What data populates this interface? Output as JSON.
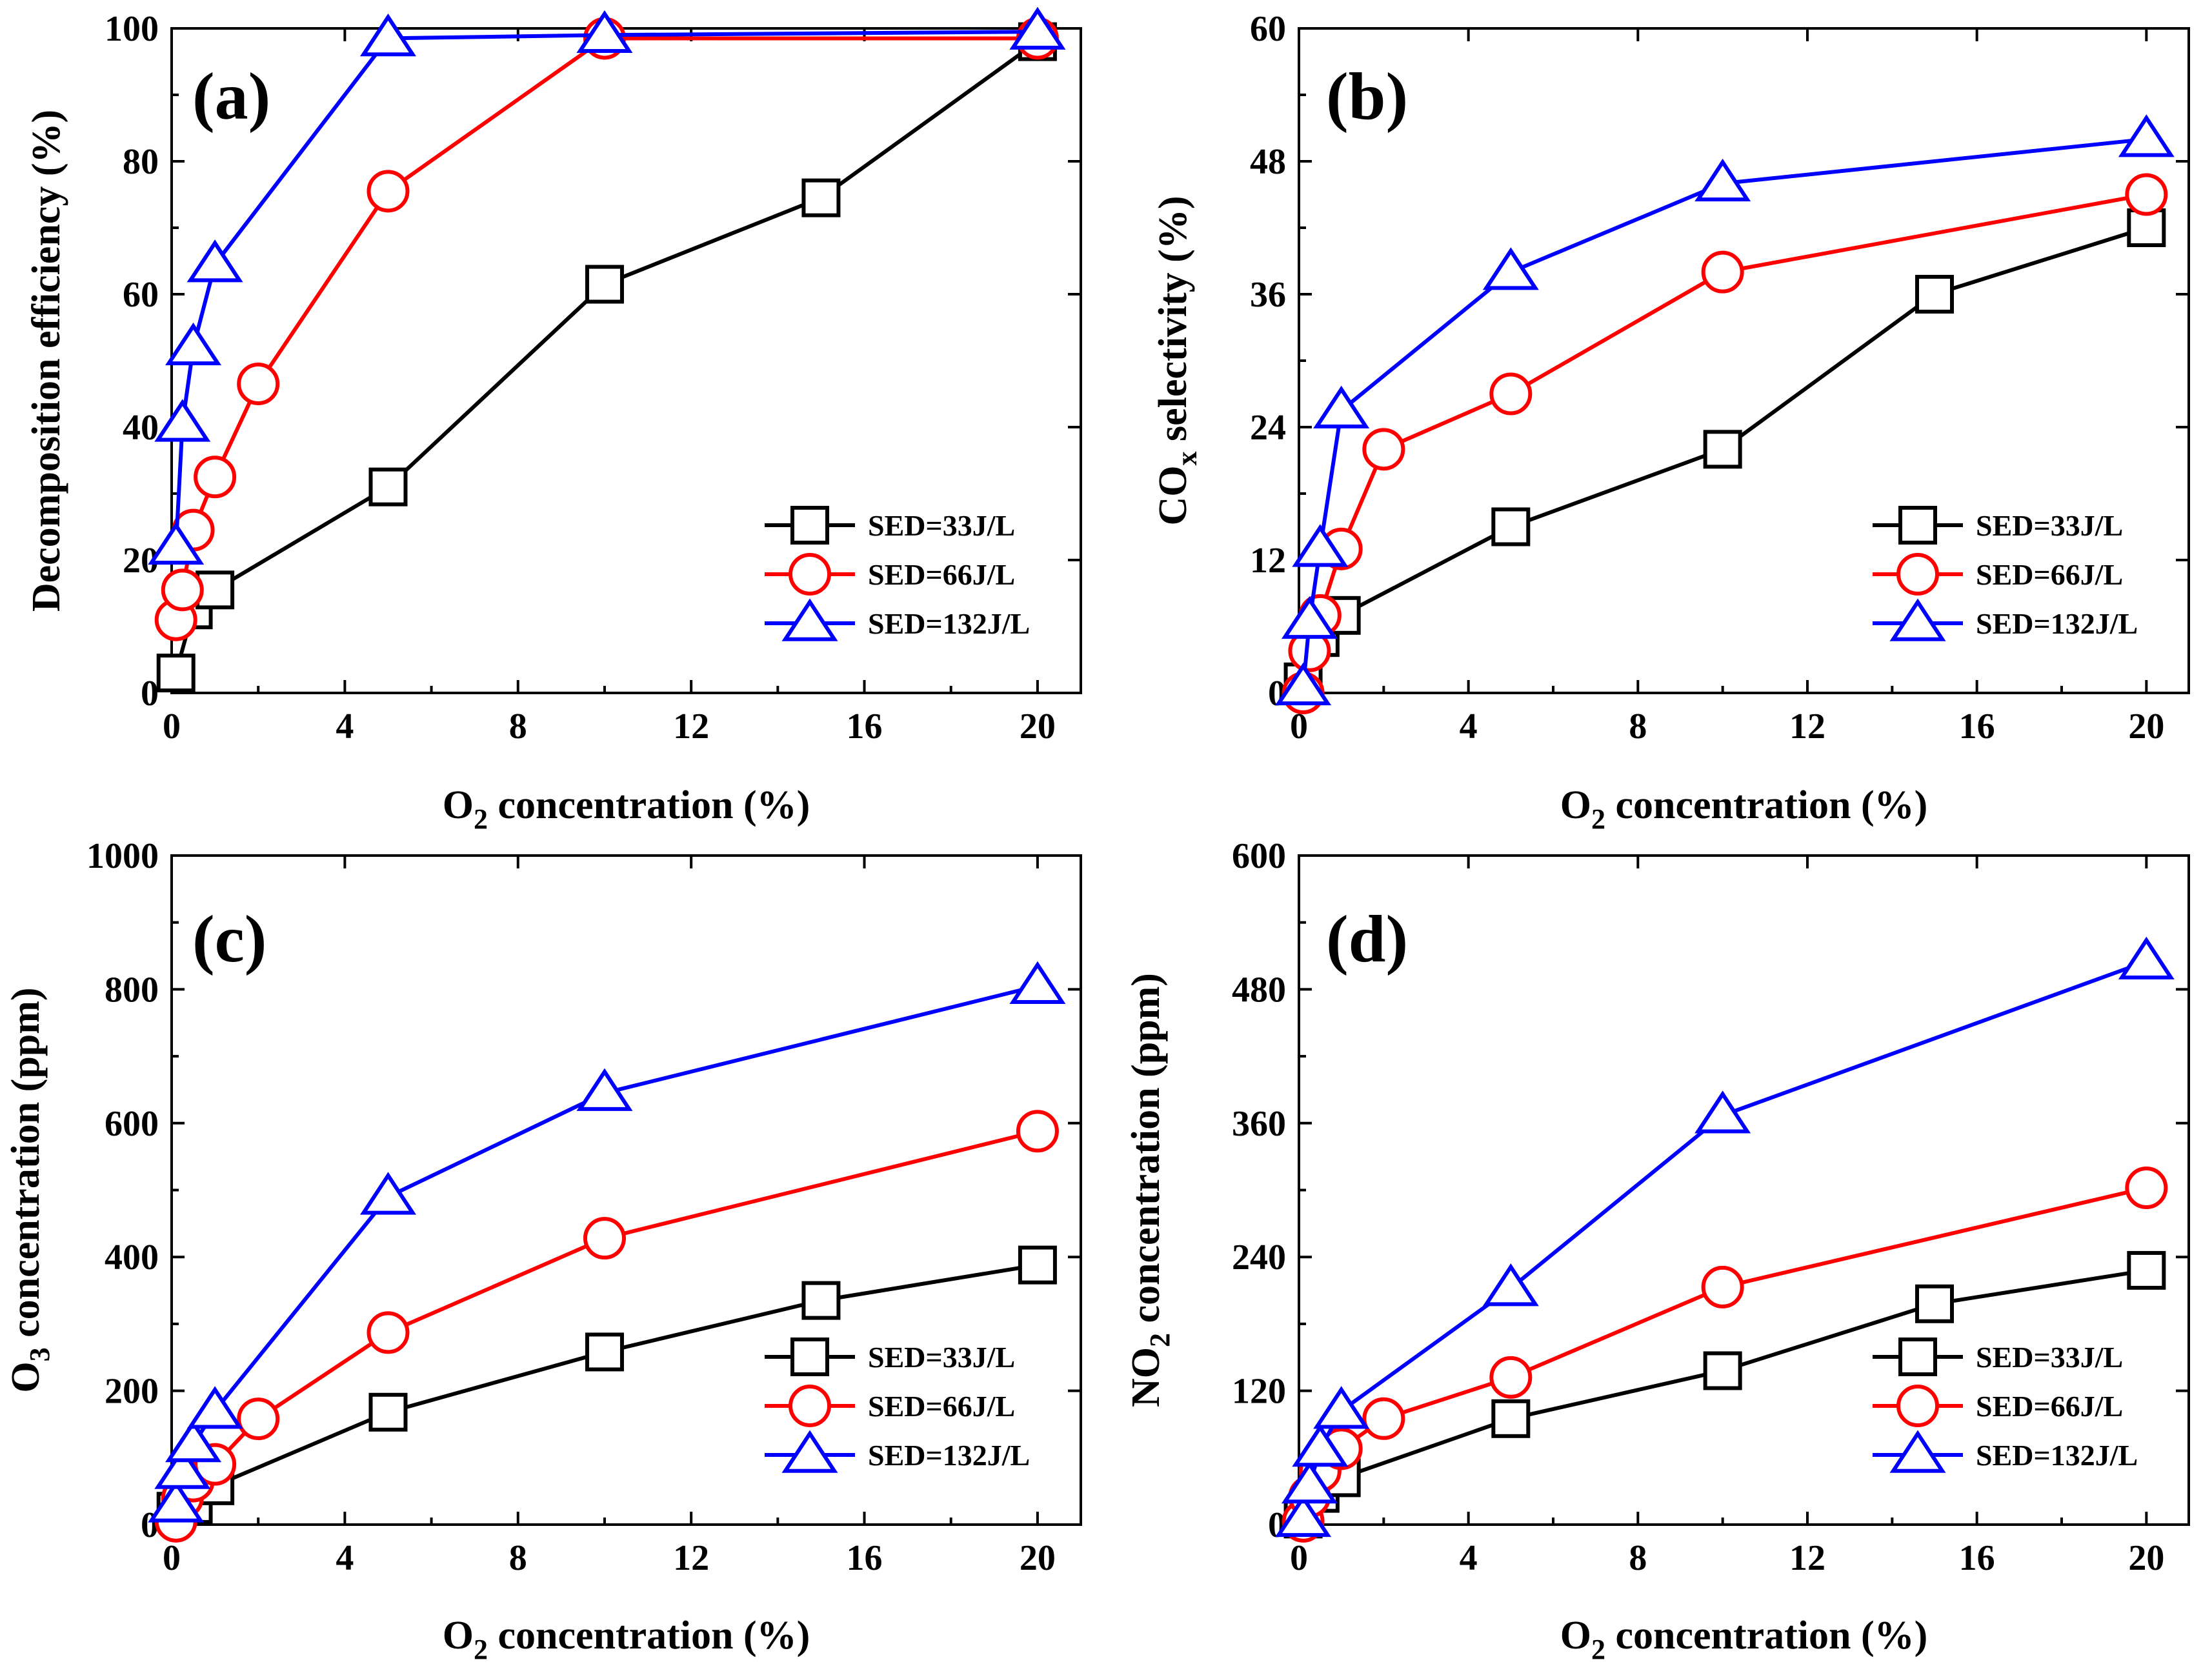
{
  "chart_data": [
    {
      "panel": "(a)",
      "type": "line",
      "xlabel": {
        "main": "O",
        "sub": "2",
        "rest": " concentration (%)"
      },
      "ylabel": {
        "main": "Decomposition efficiency (%)",
        "sub": "",
        "rest": ""
      },
      "xlim": [
        0,
        21
      ],
      "ylim": [
        0,
        100
      ],
      "xticks": [
        0,
        4,
        8,
        12,
        16,
        20
      ],
      "yticks": [
        0,
        20,
        40,
        60,
        80,
        100
      ],
      "legend_position": "bottom-right",
      "series": [
        {
          "name": "SED=33J/L",
          "marker": "square",
          "color": "#000000",
          "x": [
            0.1,
            0.5,
            1,
            5,
            10,
            15,
            20
          ],
          "y": [
            3,
            12.5,
            15.5,
            31,
            61.5,
            74.5,
            98
          ]
        },
        {
          "name": "SED=66J/L",
          "marker": "circle",
          "color": "#ff0000",
          "x": [
            0.1,
            0.25,
            0.5,
            1,
            2,
            5,
            10,
            20
          ],
          "y": [
            11,
            15.5,
            24.5,
            32.5,
            46.5,
            75.5,
            98.5,
            98.5
          ]
        },
        {
          "name": "SED=132J/L",
          "marker": "triangle",
          "color": "#0000ff",
          "x": [
            0.1,
            0.25,
            0.5,
            1,
            5,
            10,
            20
          ],
          "y": [
            22,
            40.5,
            52,
            64.5,
            98.5,
            99,
            99.5
          ]
        }
      ]
    },
    {
      "panel": "(b)",
      "type": "line",
      "xlabel": {
        "main": "O",
        "sub": "2",
        "rest": " concentration (%)"
      },
      "ylabel": {
        "main": "CO",
        "sub": "x",
        "rest": " selectivity (%)"
      },
      "xlim": [
        0,
        21
      ],
      "ylim": [
        0,
        60
      ],
      "xticks": [
        0,
        4,
        8,
        12,
        16,
        20
      ],
      "yticks": [
        0,
        12,
        24,
        36,
        48,
        60
      ],
      "legend_position": "bottom-right",
      "series": [
        {
          "name": "SED=33J/L",
          "marker": "square",
          "color": "#000000",
          "x": [
            0.1,
            0.5,
            1,
            5,
            10,
            15,
            20
          ],
          "y": [
            1,
            5,
            7,
            15,
            22,
            36,
            42
          ]
        },
        {
          "name": "SED=66J/L",
          "marker": "circle",
          "color": "#ff0000",
          "x": [
            0.1,
            0.25,
            0.5,
            1,
            2,
            5,
            10,
            20
          ],
          "y": [
            0,
            3.8,
            7,
            13,
            22,
            27,
            38,
            45
          ]
        },
        {
          "name": "SED=132J/L",
          "marker": "triangle",
          "color": "#0000ff",
          "x": [
            0.1,
            0.25,
            0.5,
            1,
            5,
            10,
            20
          ],
          "y": [
            0.5,
            6.5,
            13,
            25.5,
            38,
            46,
            50
          ]
        }
      ]
    },
    {
      "panel": "(c)",
      "type": "line",
      "xlabel": {
        "main": "O",
        "sub": "2",
        "rest": " concentration (%)"
      },
      "ylabel": {
        "main": "O",
        "sub": "3",
        "rest": " concentration (ppm)"
      },
      "xlim": [
        0,
        21
      ],
      "ylim": [
        0,
        1000
      ],
      "xticks": [
        0,
        4,
        8,
        12,
        16,
        20
      ],
      "yticks": [
        0,
        200,
        400,
        600,
        800,
        1000
      ],
      "legend_position": "bottom-right",
      "series": [
        {
          "name": "SED=33J/L",
          "marker": "square",
          "color": "#000000",
          "x": [
            0.1,
            0.5,
            1,
            5,
            10,
            15,
            20
          ],
          "y": [
            20,
            30,
            58,
            168,
            258,
            335,
            388
          ]
        },
        {
          "name": "SED=66J/L",
          "marker": "circle",
          "color": "#ff0000",
          "x": [
            0.1,
            0.25,
            0.5,
            1,
            2,
            5,
            10,
            20
          ],
          "y": [
            5,
            40,
            65,
            90,
            158,
            287,
            428,
            588
          ]
        },
        {
          "name": "SED=132J/L",
          "marker": "triangle",
          "color": "#0000ff",
          "x": [
            0.1,
            0.25,
            0.5,
            1,
            5,
            10,
            20
          ],
          "y": [
            30,
            80,
            120,
            170,
            490,
            645,
            805
          ]
        }
      ]
    },
    {
      "panel": "(d)",
      "type": "line",
      "xlabel": {
        "main": "O",
        "sub": "2",
        "rest": " concentration (%)"
      },
      "ylabel": {
        "main": "NO",
        "sub": "2",
        "rest": " concentration (ppm)"
      },
      "xlim": [
        0,
        21
      ],
      "ylim": [
        0,
        600
      ],
      "xticks": [
        0,
        4,
        8,
        12,
        16,
        20
      ],
      "yticks": [
        0,
        120,
        240,
        360,
        480,
        600
      ],
      "legend_position": "bottom-right",
      "series": [
        {
          "name": "SED=33J/L",
          "marker": "square",
          "color": "#000000",
          "x": [
            0.1,
            0.5,
            1,
            5,
            10,
            15,
            20
          ],
          "y": [
            5,
            28,
            42,
            95,
            138,
            198,
            228
          ]
        },
        {
          "name": "SED=66J/L",
          "marker": "circle",
          "color": "#ff0000",
          "x": [
            0.1,
            0.25,
            0.5,
            1,
            2,
            5,
            10,
            20
          ],
          "y": [
            3,
            25,
            48,
            68,
            95,
            132,
            213,
            302
          ]
        },
        {
          "name": "SED=132J/L",
          "marker": "triangle",
          "color": "#0000ff",
          "x": [
            0.1,
            0.25,
            0.5,
            1,
            5,
            10,
            20
          ],
          "y": [
            5,
            35,
            68,
            102,
            212,
            367,
            505
          ]
        }
      ]
    }
  ]
}
